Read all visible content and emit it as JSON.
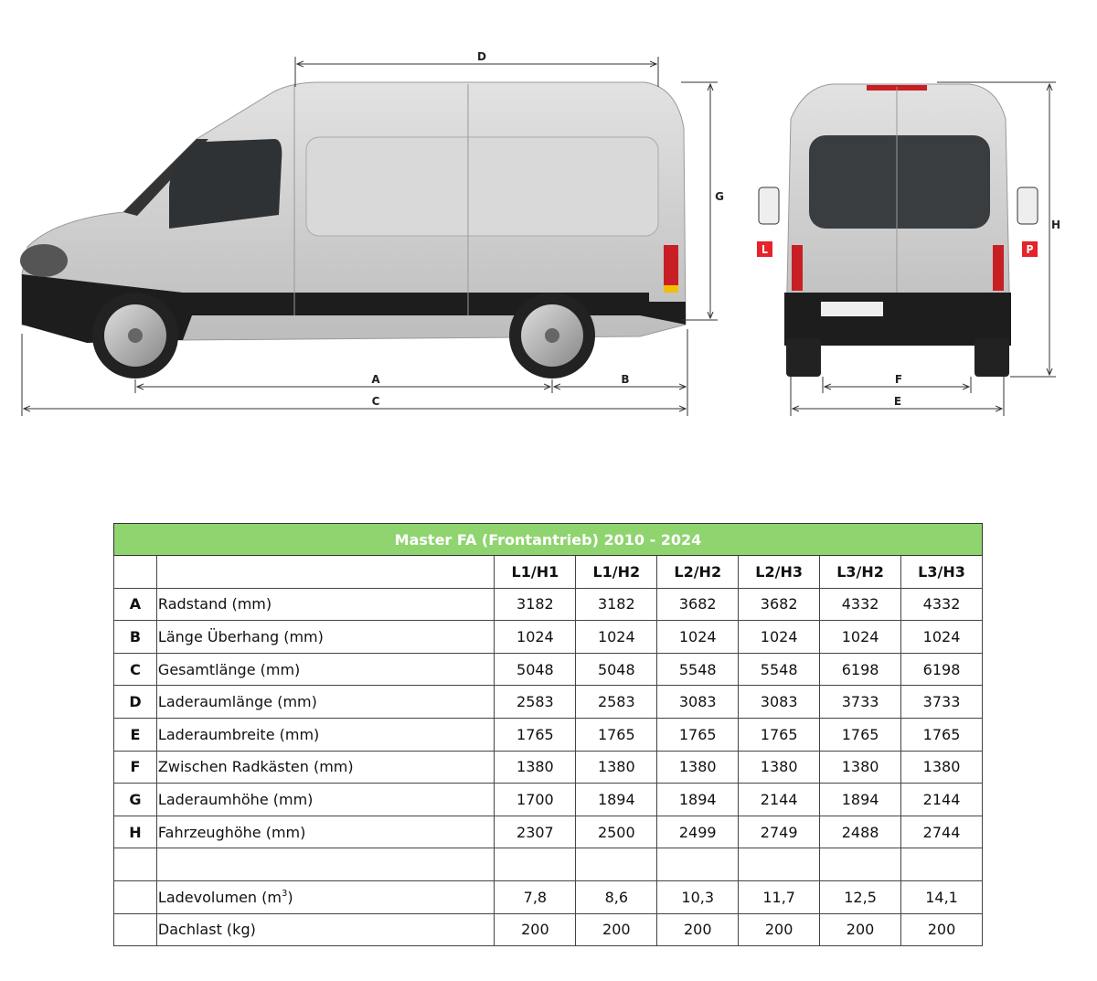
{
  "diagram": {
    "dimension_labels": {
      "A": "A",
      "B": "B",
      "C": "C",
      "D": "D",
      "E": "E",
      "F": "F",
      "G": "G",
      "H": "H"
    },
    "side_badges": {
      "left": "L",
      "right": "P"
    },
    "colors": {
      "badge": "#e5232a",
      "body": "#c9c9c9",
      "header_green": "#8fd46f"
    }
  },
  "table": {
    "title": "Master FA (Frontantrieb) 2010 - 2024",
    "columns": [
      "L1/H1",
      "L1/H2",
      "L2/H2",
      "L2/H3",
      "L3/H2",
      "L3/H3"
    ],
    "rows": [
      {
        "letter": "A",
        "label": "Radstand (mm)",
        "values": [
          "3182",
          "3182",
          "3682",
          "3682",
          "4332",
          "4332"
        ]
      },
      {
        "letter": "B",
        "label": "Länge Überhang (mm)",
        "values": [
          "1024",
          "1024",
          "1024",
          "1024",
          "1024",
          "1024"
        ]
      },
      {
        "letter": "C",
        "label": "Gesamtlänge  (mm)",
        "values": [
          "5048",
          "5048",
          "5548",
          "5548",
          "6198",
          "6198"
        ]
      },
      {
        "letter": "D",
        "label": "Laderaumlänge (mm)",
        "values": [
          "2583",
          "2583",
          "3083",
          "3083",
          "3733",
          "3733"
        ]
      },
      {
        "letter": "E",
        "label": "Laderaumbreite (mm)",
        "values": [
          "1765",
          "1765",
          "1765",
          "1765",
          "1765",
          "1765"
        ]
      },
      {
        "letter": "F",
        "label": "Zwischen Radkästen (mm)",
        "values": [
          "1380",
          "1380",
          "1380",
          "1380",
          "1380",
          "1380"
        ]
      },
      {
        "letter": "G",
        "label": "Laderaumhöhe (mm)",
        "values": [
          "1700",
          "1894",
          "1894",
          "2144",
          "1894",
          "2144"
        ]
      },
      {
        "letter": "H",
        "label": "Fahrzeughöhe (mm)",
        "values": [
          "2307",
          "2500",
          "2499",
          "2749",
          "2488",
          "2744"
        ]
      }
    ],
    "extra_rows": [
      {
        "label": "Ladevolumen (m",
        "label_sup": "3",
        "label_end": ")",
        "values": [
          "7,8",
          "8,6",
          "10,3",
          "11,7",
          "12,5",
          "14,1"
        ]
      },
      {
        "label": "Dachlast (kg)",
        "values": [
          "200",
          "200",
          "200",
          "200",
          "200",
          "200"
        ]
      }
    ]
  }
}
